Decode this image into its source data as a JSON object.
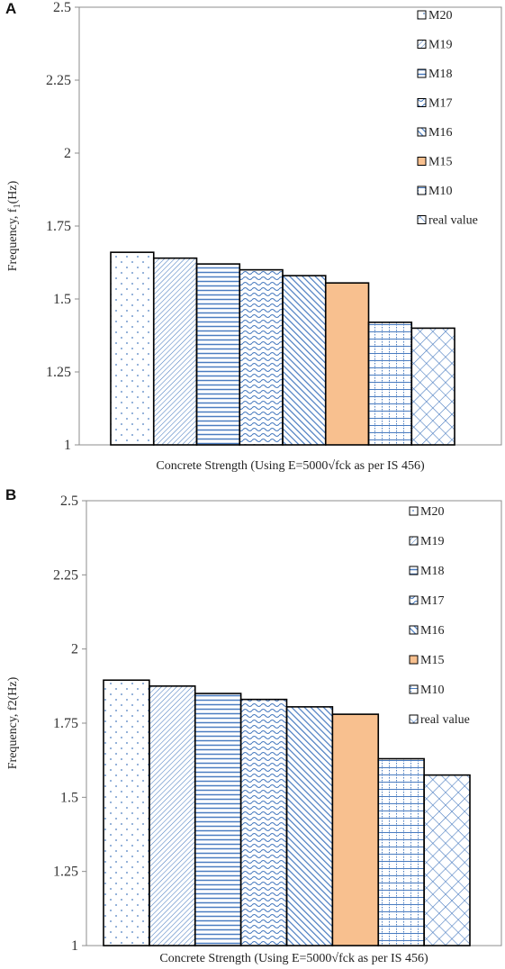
{
  "colors": {
    "pattern": "#4a7cc0",
    "solid_fill": "#f8c08f",
    "border": "#000000",
    "plot_border": "#8c8c8c"
  },
  "panels": [
    {
      "letter": "A"
    },
    {
      "letter": "B"
    }
  ],
  "chart_data": [
    {
      "type": "bar",
      "panel": "A",
      "categories": [
        "M20",
        "M19",
        "M18",
        "M17",
        "M16",
        "M15",
        "M10",
        "real value"
      ],
      "values": [
        1.66,
        1.64,
        1.62,
        1.6,
        1.58,
        1.555,
        1.42,
        1.4
      ],
      "fills": [
        "dots",
        "diagonal",
        "horizontal",
        "wave",
        "diagonal-bold",
        "solid",
        "grid",
        "diamond"
      ],
      "ylabel": "Frequency, f1(Hz)",
      "ylabel_main": "Frequency, f",
      "ylabel_sub": "1",
      "ylabel_unit": "(Hz)",
      "xlabel": "Concrete Strength (Using E=5000√fck as per IS 456)",
      "ylim": [
        1,
        2.5
      ],
      "yticks": [
        "1",
        "1.25",
        "1.5",
        "1.75",
        "2",
        "2.25",
        "2.5"
      ],
      "ytick_values": [
        1,
        1.25,
        1.5,
        1.75,
        2,
        2.25,
        2.5
      ],
      "legend": [
        "M20",
        "M19",
        "M18",
        "M17",
        "M16",
        "M15",
        "M10",
        "real value"
      ],
      "legend_position": "top-right",
      "grid": false
    },
    {
      "type": "bar",
      "panel": "B",
      "categories": [
        "M20",
        "M19",
        "M18",
        "M17",
        "M16",
        "M15",
        "M10",
        "real value"
      ],
      "values": [
        1.895,
        1.875,
        1.85,
        1.83,
        1.805,
        1.78,
        1.63,
        1.575
      ],
      "fills": [
        "dots",
        "diagonal",
        "horizontal",
        "wave",
        "diagonal-bold",
        "solid",
        "grid",
        "diamond"
      ],
      "ylabel": "Frequency, f2(Hz)",
      "ylabel_main": "Frequency, f2(Hz)",
      "ylabel_sub": "",
      "ylabel_unit": "",
      "xlabel": "Concrete Strength (Using E=5000√fck as per IS 456)",
      "ylim": [
        1,
        2.5
      ],
      "yticks": [
        "1",
        "1.25",
        "1.5",
        "1.75",
        "2",
        "2.25",
        "2.5"
      ],
      "ytick_values": [
        1,
        1.25,
        1.5,
        1.75,
        2,
        2.25,
        2.5
      ],
      "legend": [
        "M20",
        "M19",
        "M18",
        "M17",
        "M16",
        "M15",
        "M10",
        "real value"
      ],
      "legend_position": "top-right",
      "grid": false
    }
  ]
}
